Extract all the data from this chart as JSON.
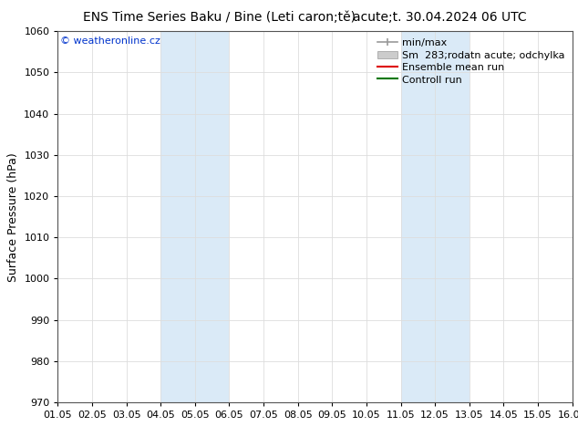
{
  "title_left": "ENS Time Series Baku / Bine (Leti caron;tě)",
  "title_right": "acute;t. 30.04.2024 06 UTC",
  "ylabel": "Surface Pressure (hPa)",
  "ylim": [
    970,
    1060
  ],
  "yticks": [
    970,
    980,
    990,
    1000,
    1010,
    1020,
    1030,
    1040,
    1050,
    1060
  ],
  "xlim": [
    0,
    15
  ],
  "xtick_labels": [
    "01.05",
    "02.05",
    "03.05",
    "04.05",
    "05.05",
    "06.05",
    "07.05",
    "08.05",
    "09.05",
    "10.05",
    "11.05",
    "12.05",
    "13.05",
    "14.05",
    "15.05",
    "16.05"
  ],
  "xtick_positions": [
    0,
    1,
    2,
    3,
    4,
    5,
    6,
    7,
    8,
    9,
    10,
    11,
    12,
    13,
    14,
    15
  ],
  "shaded_bands": [
    {
      "xmin": 3,
      "xmax": 5,
      "color": "#daeaf7"
    },
    {
      "xmin": 10,
      "xmax": 12,
      "color": "#daeaf7"
    }
  ],
  "watermark": "© weatheronline.cz",
  "watermark_color": "#0033cc",
  "legend_labels": [
    "min/max",
    "Sm  283;rodatn acute; odchylka",
    "Ensemble mean run",
    "Controll run"
  ],
  "legend_colors": [
    "#999999",
    "#cccccc",
    "#dd0000",
    "#007700"
  ],
  "background_color": "#ffffff",
  "plot_bg_color": "#ffffff",
  "border_color": "#aaaaaa",
  "grid_color": "#dddddd",
  "title_fontsize": 10,
  "axis_label_fontsize": 9,
  "tick_fontsize": 8,
  "legend_fontsize": 8,
  "watermark_fontsize": 8
}
